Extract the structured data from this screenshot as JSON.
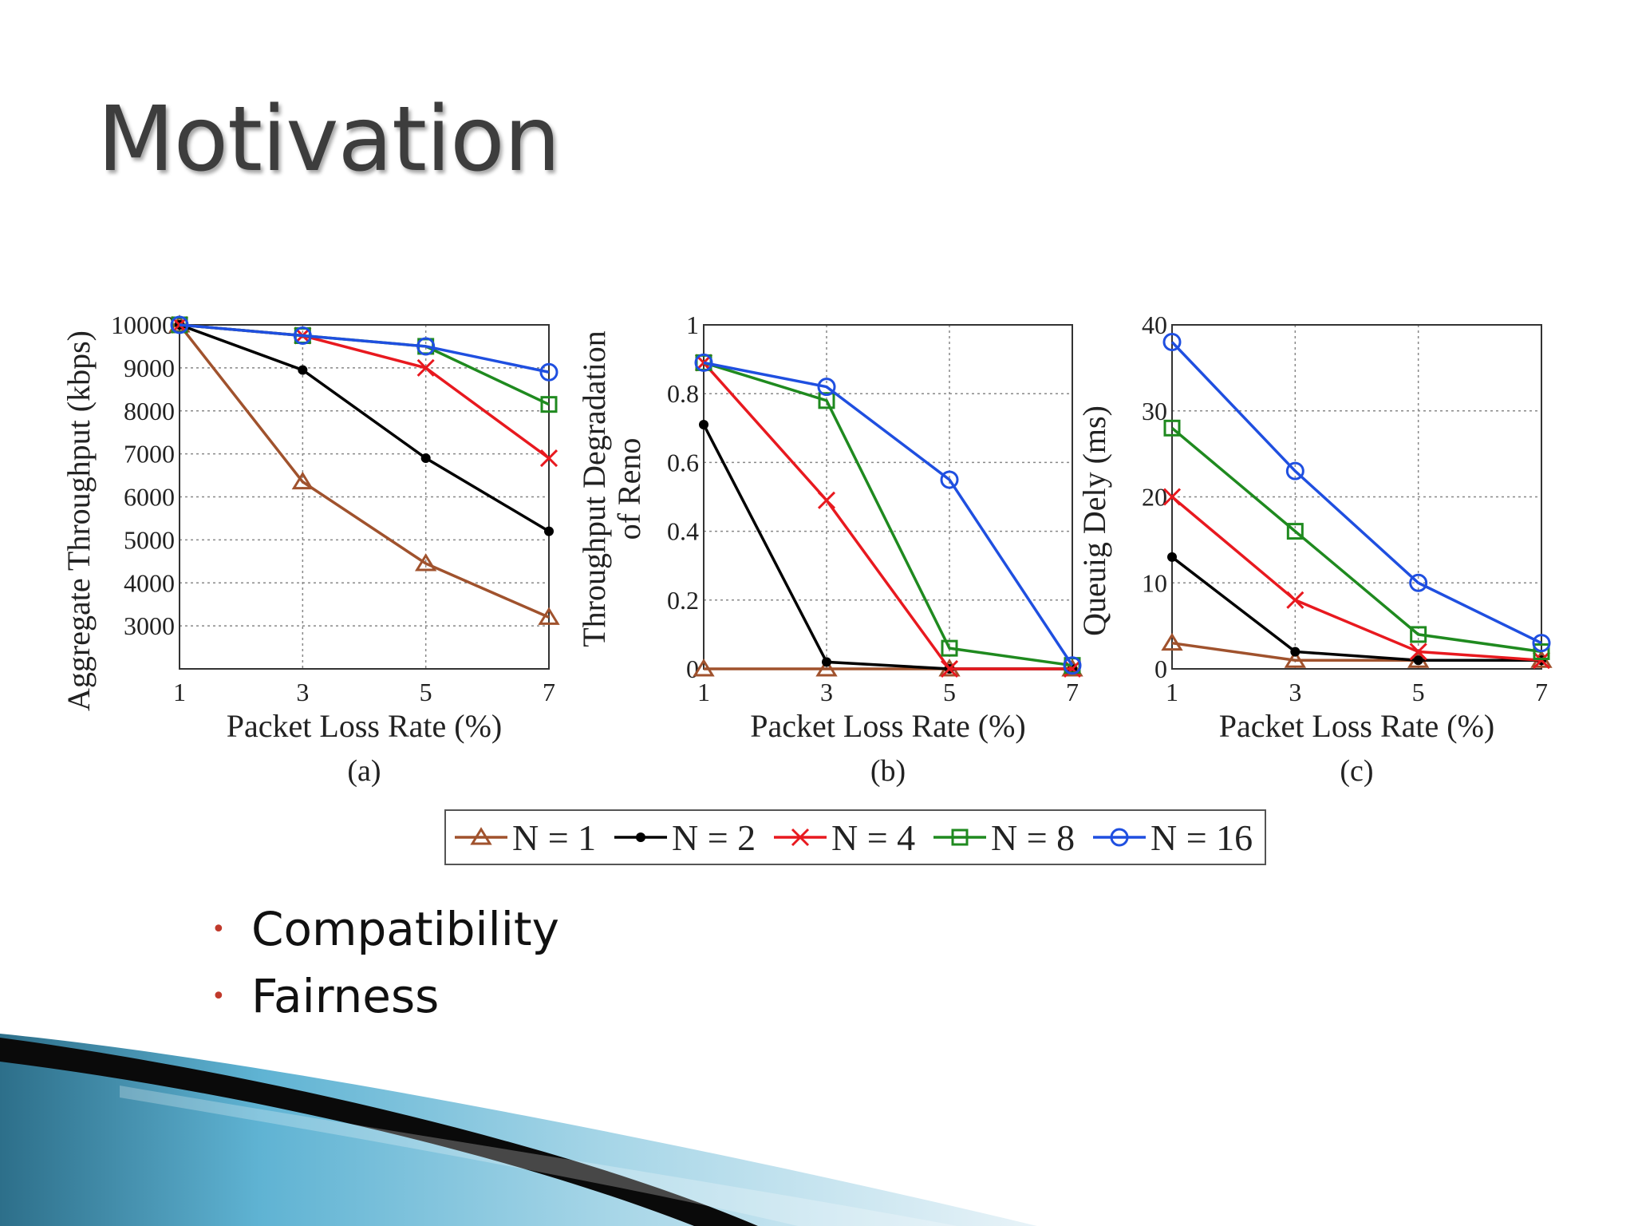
{
  "slide": {
    "title": "Motivation",
    "bullets": [
      "Compatibility",
      "Fairness"
    ]
  },
  "colors": {
    "n1": "#a0522d",
    "n2": "#000000",
    "n4": "#e8191f",
    "n8": "#1f8a1f",
    "n16": "#1f4fe0",
    "bullet": "#c0392b",
    "title": "#3d3d3d"
  },
  "chart_data": [
    {
      "type": "line",
      "panel": "(a)",
      "xlabel": "Packet Loss Rate (%)",
      "ylabel": "Aggregate Throughput (kbps)",
      "x": [
        1,
        3,
        5,
        7
      ],
      "xlim": [
        1,
        7
      ],
      "ylim": [
        2000,
        10000
      ],
      "yticks": [
        3000,
        4000,
        5000,
        6000,
        7000,
        8000,
        9000,
        10000
      ],
      "ytick_labels": [
        "3000",
        "4000",
        "5000",
        "6000",
        "7000",
        "8000",
        "9000",
        "10000"
      ],
      "grid": true,
      "series": [
        {
          "name": "N = 1",
          "values": [
            10000,
            6350,
            4450,
            3200
          ]
        },
        {
          "name": "N = 2",
          "values": [
            10000,
            8950,
            6900,
            5200
          ]
        },
        {
          "name": "N = 4",
          "values": [
            10000,
            9750,
            9000,
            6900
          ]
        },
        {
          "name": "N = 8",
          "values": [
            10000,
            9750,
            9500,
            8150
          ]
        },
        {
          "name": "N = 16",
          "values": [
            10000,
            9750,
            9500,
            8900
          ]
        }
      ]
    },
    {
      "type": "line",
      "panel": "(b)",
      "xlabel": "Packet Loss Rate (%)",
      "ylabel": "Throughput Degradation of Reno",
      "ylabel_lines": [
        "Throughput Degradation",
        "of Reno"
      ],
      "x": [
        1,
        3,
        5,
        7
      ],
      "xlim": [
        1,
        7
      ],
      "ylim": [
        0,
        1
      ],
      "yticks": [
        0,
        0.2,
        0.4,
        0.6,
        0.8,
        1
      ],
      "ytick_labels": [
        "0",
        "0.2",
        "0.4",
        "0.6",
        "0.8",
        "1"
      ],
      "grid": true,
      "series": [
        {
          "name": "N = 1",
          "values": [
            0,
            0,
            0,
            0
          ]
        },
        {
          "name": "N = 2",
          "values": [
            0.71,
            0.02,
            0,
            0
          ]
        },
        {
          "name": "N = 4",
          "values": [
            0.89,
            0.49,
            0,
            0
          ]
        },
        {
          "name": "N = 8",
          "values": [
            0.89,
            0.78,
            0.06,
            0.01
          ]
        },
        {
          "name": "N = 16",
          "values": [
            0.89,
            0.82,
            0.55,
            0.01
          ]
        }
      ]
    },
    {
      "type": "line",
      "panel": "(c)",
      "xlabel": "Packet Loss Rate (%)",
      "ylabel": "Queuig Dely (ms)",
      "x": [
        1,
        3,
        5,
        7
      ],
      "xlim": [
        1,
        7
      ],
      "ylim": [
        0,
        40
      ],
      "yticks": [
        0,
        10,
        20,
        30,
        40
      ],
      "ytick_labels": [
        "0",
        "10",
        "20",
        "30",
        "40"
      ],
      "grid": true,
      "series": [
        {
          "name": "N = 1",
          "values": [
            3,
            1,
            1,
            1
          ]
        },
        {
          "name": "N = 2",
          "values": [
            13,
            2,
            1,
            1
          ]
        },
        {
          "name": "N = 4",
          "values": [
            20,
            8,
            2,
            1
          ]
        },
        {
          "name": "N = 8",
          "values": [
            28,
            16,
            4,
            2
          ]
        },
        {
          "name": "N = 16",
          "values": [
            38,
            23,
            10,
            3
          ]
        }
      ]
    }
  ],
  "legend": {
    "placement": "bottom-center",
    "entries": [
      "N = 1",
      "N = 2",
      "N = 4",
      "N = 8",
      "N = 16"
    ]
  }
}
